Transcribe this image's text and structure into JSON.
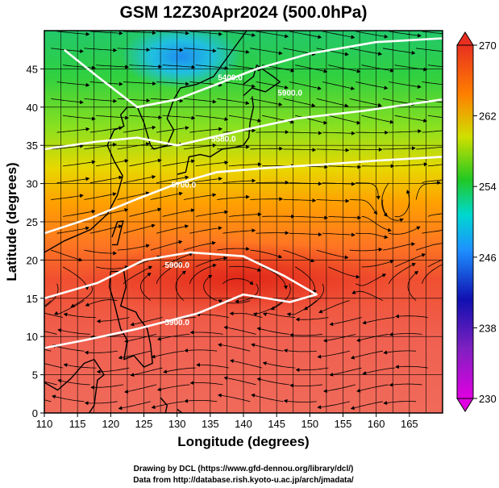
{
  "chart_data": {
    "type": "heatmap",
    "title": "GSM 12Z30Apr2024 (500.0hPa)",
    "xlabel": "Longitude (degrees)",
    "ylabel": "Latitude  (degrees)",
    "xlim": [
      110,
      170
    ],
    "ylim": [
      0,
      50
    ],
    "x_ticks": [
      110,
      115,
      120,
      125,
      130,
      135,
      140,
      145,
      150,
      155,
      160,
      165
    ],
    "y_ticks": [
      0,
      5,
      10,
      15,
      20,
      25,
      30,
      35,
      40,
      45
    ],
    "colorbar": {
      "min": 230,
      "max": 270,
      "ticks": [
        230,
        238,
        246,
        254,
        262,
        270
      ],
      "colors": [
        "#e000e0",
        "#1010b0",
        "#1e90ff",
        "#00d8d0",
        "#22c822",
        "#cfe000",
        "#ff8000",
        "#e83020"
      ]
    },
    "contours": [
      {
        "label": "5400.0",
        "points": [
          [
            113,
            47.5
          ],
          [
            118,
            44
          ],
          [
            124,
            40
          ],
          [
            130,
            41
          ],
          [
            136,
            43
          ],
          [
            142,
            45
          ],
          [
            150,
            47
          ],
          [
            160,
            48.5
          ],
          [
            170,
            49
          ]
        ]
      },
      {
        "label": "5580.0",
        "points": [
          [
            110,
            34.5
          ],
          [
            118,
            35.5
          ],
          [
            124,
            36
          ],
          [
            130,
            35
          ],
          [
            135,
            36
          ],
          [
            140,
            37
          ],
          [
            148,
            38.5
          ],
          [
            158,
            39.5
          ],
          [
            170,
            41
          ]
        ]
      },
      {
        "label": "5700.0",
        "points": [
          [
            110,
            23.5
          ],
          [
            117,
            25.5
          ],
          [
            124,
            28
          ],
          [
            130,
            30
          ],
          [
            136,
            31.5
          ],
          [
            143,
            32
          ],
          [
            152,
            32.5
          ],
          [
            160,
            33
          ],
          [
            170,
            33.5
          ]
        ]
      },
      {
        "label": "5900.0",
        "points": [
          [
            110,
            15
          ],
          [
            118,
            17
          ],
          [
            125,
            20
          ],
          [
            132,
            21
          ],
          [
            140,
            20.5
          ],
          [
            146,
            18
          ],
          [
            151,
            15.5
          ],
          [
            147,
            14.5
          ],
          [
            140,
            15.5
          ],
          [
            133,
            13
          ],
          [
            124,
            11
          ],
          [
            116,
            9.5
          ],
          [
            110,
            8.5
          ]
        ]
      }
    ],
    "contour_label_positions": [
      {
        "label": "5400.0",
        "at": [
          138,
          43.5
        ]
      },
      {
        "label": "5580.0",
        "at": [
          137,
          35.5
        ]
      },
      {
        "label": "5700.0",
        "at": [
          131,
          29.5
        ]
      },
      {
        "label": "5900.0",
        "at": [
          130,
          19
        ]
      },
      {
        "label": "5900.0",
        "at": [
          130,
          11.5
        ]
      },
      {
        "label": "5900.0",
        "at": [
          147,
          41.5
        ]
      }
    ]
  },
  "credits": {
    "line1": "Drawing by DCL (https://www.gfd-dennou.org/library/dcl/)",
    "line2": "Data from http://database.rish.kyoto-u.ac.jp/arch/jmadata/"
  }
}
